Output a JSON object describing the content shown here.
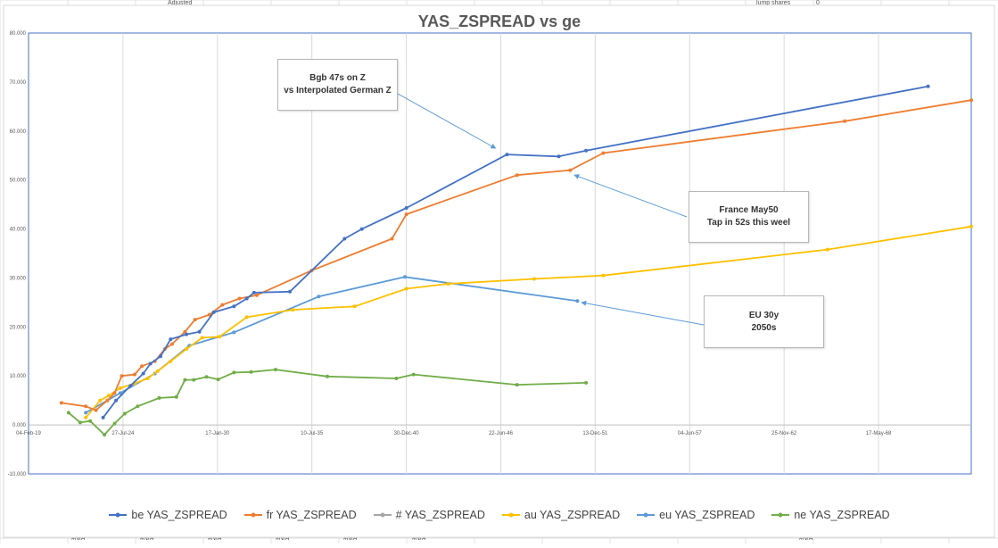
{
  "sheet": {
    "top_cells": [
      "Adjusted",
      "lump shares",
      "0"
    ],
    "na_label": "#N/A"
  },
  "chart_data": {
    "type": "line",
    "title": "YAS_ZSPREAD vs ge",
    "xlabel": "",
    "ylabel": "",
    "x_is_date": true,
    "xlim": [
      "2019-02-04",
      "2073-10-01"
    ],
    "ylim": [
      -10,
      80
    ],
    "y_tick_values": [
      -10,
      0,
      10,
      20,
      30,
      40,
      50,
      60,
      70,
      80
    ],
    "y_tick_labels": [
      "-10.000",
      "0.000",
      "10.000",
      "20.000",
      "30.000",
      "40.000",
      "50.000",
      "60.000",
      "70.000",
      "80.000"
    ],
    "x_tick_values": [
      "2019-02-04",
      "2024-07-27",
      "2030-01-17",
      "2035-07-10",
      "2040-12-30",
      "2046-06-22",
      "2051-12-13",
      "2057-06-04",
      "2062-11-25",
      "2068-05-17"
    ],
    "x_tick_labels": [
      "04-Feb-19",
      "27-Jul-24",
      "17-Jan-30",
      "10-Jul-35",
      "30-Dec-40",
      "22-Jun-46",
      "13-Dec-51",
      "04-Jun-57",
      "25-Nov-62",
      "17-May-68"
    ],
    "grid": {
      "vertical": true,
      "horizontal": false
    },
    "legend_position": "bottom",
    "series": [
      {
        "name": "be YAS_ZSPREAD",
        "color": "#4472c4",
        "marker": "circle",
        "x": [
          "2023-06-01",
          "2024-03-01",
          "2025-01-01",
          "2025-10-01",
          "2026-03-01",
          "2026-10-01",
          "2027-05-01",
          "2028-04-01",
          "2029-01-01",
          "2029-11-01",
          "2031-01-01",
          "2031-10-01",
          "2032-03-01",
          "2034-04-01",
          "2037-06-01",
          "2038-06-01",
          "2041-01-01",
          "2046-11-01",
          "2049-11-01",
          "2051-06-01",
          "2071-04-01"
        ],
        "y": [
          1.5,
          5.0,
          8.0,
          10.5,
          12.5,
          14.0,
          17.5,
          18.5,
          19.0,
          23.0,
          24.2,
          25.8,
          27.0,
          27.2,
          38.0,
          40.0,
          44.3,
          55.2,
          54.8,
          56.0,
          69.1
        ]
      },
      {
        "name": "fr YAS_ZSPREAD",
        "color": "#ed7d31",
        "marker": "circle",
        "x": [
          "2021-01-01",
          "2022-06-01",
          "2023-01-01",
          "2023-09-01",
          "2024-02-01",
          "2024-07-01",
          "2025-04-01",
          "2025-09-01",
          "2026-06-01",
          "2027-01-01",
          "2027-06-01",
          "2028-03-01",
          "2028-10-01",
          "2029-08-01",
          "2030-05-01",
          "2031-05-01",
          "2032-05-01",
          "2035-07-01",
          "2040-03-01",
          "2041-01-01",
          "2047-06-01",
          "2050-07-01",
          "2052-06-01",
          "2066-06-01",
          "2073-10-01"
        ],
        "y": [
          4.5,
          3.8,
          3.0,
          5.0,
          6.5,
          10.0,
          10.3,
          12.0,
          13.0,
          15.5,
          16.5,
          19.0,
          21.5,
          22.5,
          24.5,
          25.8,
          26.5,
          31.5,
          38.0,
          43.0,
          51.0,
          52.0,
          55.5,
          62.0,
          66.3
        ]
      },
      {
        "name": "# YAS_ZSPREAD",
        "color": "#a5a5a5",
        "marker": "circle",
        "x": [],
        "y": []
      },
      {
        "name": "au YAS_ZSPREAD",
        "color": "#ffc000",
        "marker": "circle",
        "x": [
          "2022-06-01",
          "2023-04-01",
          "2023-10-01",
          "2024-06-01",
          "2025-04-01",
          "2026-01-01",
          "2026-08-01",
          "2027-05-01",
          "2028-04-01",
          "2029-03-01",
          "2030-03-01",
          "2031-10-01",
          "2034-06-01",
          "2038-01-01",
          "2041-01-01",
          "2043-06-01",
          "2048-06-01",
          "2052-06-01",
          "2065-06-01",
          "2073-10-01"
        ],
        "y": [
          1.5,
          5.0,
          6.0,
          7.5,
          8.5,
          9.5,
          11.0,
          13.0,
          15.5,
          17.8,
          18.0,
          22.0,
          23.5,
          24.2,
          27.8,
          28.8,
          29.8,
          30.5,
          35.8,
          40.5
        ]
      },
      {
        "name": "eu YAS_ZSPREAD",
        "color": "#5b9bd5",
        "marker": "circle",
        "x": [
          "2022-06-01",
          "2024-06-01",
          "2026-06-01",
          "2028-06-01",
          "2031-01-01",
          "2035-12-01",
          "2040-12-01",
          "2050-12-01"
        ],
        "y": [
          2.5,
          6.5,
          10.5,
          16.2,
          18.9,
          26.2,
          30.2,
          25.3
        ]
      },
      {
        "name": "ne YAS_ZSPREAD",
        "color": "#70ad47",
        "marker": "circle",
        "x": [
          "2021-06-01",
          "2022-02-01",
          "2022-09-01",
          "2023-07-01",
          "2024-02-01",
          "2024-09-01",
          "2025-06-01",
          "2026-09-01",
          "2027-09-01",
          "2028-03-01",
          "2028-09-01",
          "2029-06-01",
          "2030-02-01",
          "2031-01-01",
          "2032-01-01",
          "2033-06-01",
          "2036-06-01",
          "2040-06-01",
          "2041-06-01",
          "2047-06-01",
          "2051-06-01"
        ],
        "y": [
          2.5,
          0.5,
          0.8,
          -2.0,
          0.3,
          2.3,
          3.8,
          5.5,
          5.7,
          9.2,
          9.2,
          9.8,
          9.3,
          10.7,
          10.8,
          11.3,
          9.9,
          9.5,
          10.3,
          8.2,
          8.6
        ]
      }
    ],
    "annotations": [
      {
        "id": "bgb",
        "line1": "Bgb 47s on Z",
        "line2": "vs Interpolated German Z"
      },
      {
        "id": "france",
        "line1": "France May50",
        "line2": "Tap in 52s this weel"
      },
      {
        "id": "eu",
        "line1": "EU 30y",
        "line2": "2050s"
      }
    ]
  }
}
